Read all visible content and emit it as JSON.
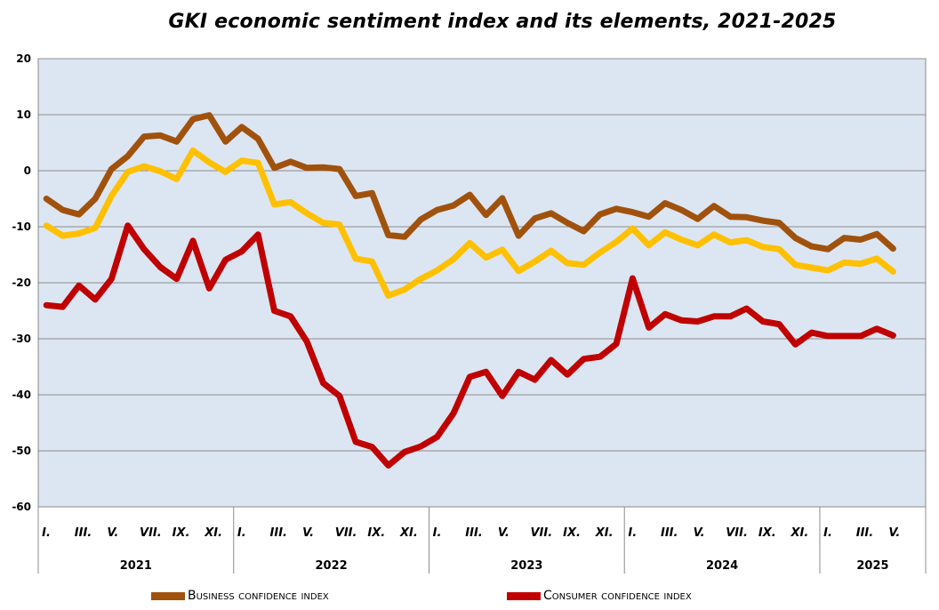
{
  "chart_data": {
    "type": "line",
    "title": "GKI economic sentiment index and its elements, 2021-2025",
    "ylim": [
      -60,
      20
    ],
    "yticks": [
      20,
      10,
      0,
      -10,
      -20,
      -30,
      -40,
      -50,
      -60
    ],
    "grid": true,
    "legend_position": "bottom",
    "month_labels": [
      "I.",
      "III.",
      "V.",
      "VII.",
      "IX.",
      "XI."
    ],
    "years": [
      "2021",
      "2022",
      "2023",
      "2024",
      "2025"
    ],
    "x_count": 53,
    "series": [
      {
        "name": "",
        "color": "#a0520d",
        "values": [
          -5,
          -7,
          -7.8,
          -5,
          0.3,
          2.6,
          6.1,
          6.3,
          5.2,
          9.2,
          9.9,
          5.2,
          7.8,
          5.7,
          0.5,
          1.6,
          0.5,
          0.6,
          0.3,
          -4.5,
          -4,
          -11.5,
          -11.8,
          -8.7,
          -7,
          -6.2,
          -4.3,
          -7.9,
          -4.9,
          -11.6,
          -8.5,
          -7.6,
          -9.3,
          -10.8,
          -7.8,
          -6.8,
          -7.4,
          -8.2,
          -5.8,
          -7,
          -8.6,
          -6.3,
          -8.2,
          -8.3,
          -8.9,
          -9.3,
          -12,
          -13.5,
          -14,
          -12,
          -12.3,
          -11.3,
          -13.9
        ]
      },
      {
        "name": "",
        "color": "#ffc000",
        "values": [
          -9.8,
          -11.6,
          -11.2,
          -10.2,
          -4.5,
          -0.2,
          0.8,
          -0.1,
          -1.5,
          3.6,
          1.5,
          -0.2,
          1.8,
          1.4,
          -6,
          -5.6,
          -7.6,
          -9.3,
          -9.6,
          -15.7,
          -16.2,
          -22.3,
          -21.2,
          -19.3,
          -17.8,
          -15.8,
          -12.9,
          -15.5,
          -14.1,
          -17.9,
          -16.2,
          -14.3,
          -16.5,
          -16.8,
          -14.6,
          -12.7,
          -10.3,
          -13.3,
          -11,
          -12.3,
          -13.3,
          -11.4,
          -12.8,
          -12.4,
          -13.6,
          -14,
          -16.8,
          -17.3,
          -17.8,
          -16.4,
          -16.6,
          -15.7,
          -18
        ]
      },
      {
        "name": "",
        "color": "#c00000",
        "values": [
          -24,
          -24.3,
          -20.5,
          -23,
          -19.3,
          -9.8,
          -14,
          -17.2,
          -19.3,
          -12.5,
          -21,
          -15.9,
          -14.4,
          -11.4,
          -25,
          -26,
          -30.5,
          -37.9,
          -40.2,
          -48.4,
          -49.3,
          -52.6,
          -50.2,
          -49.2,
          -47.5,
          -43.3,
          -36.8,
          -35.9,
          -40.2,
          -35.9,
          -37.3,
          -33.8,
          -36.4,
          -33.6,
          -33.2,
          -30.9,
          -19.2,
          -28,
          -25.6,
          -26.7,
          -26.9,
          -26,
          -26,
          -24.6,
          -26.9,
          -27.4,
          -31,
          -28.9,
          -29.5,
          -29.5,
          -29.5,
          -28.2,
          -29.4
        ]
      }
    ]
  },
  "legend": {
    "business": {
      "label": "Business confidence index",
      "color": "#a0520d"
    },
    "consumer": {
      "label": "Consumer confidence index",
      "color": "#c00000"
    }
  }
}
